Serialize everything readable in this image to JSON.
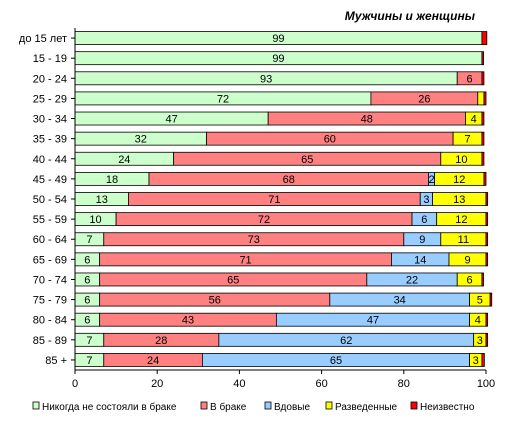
{
  "chart_data": {
    "type": "bar",
    "orientation": "horizontal",
    "stacked": "percent",
    "title": "Мужчины и женщины",
    "categories": [
      "до 15 лет",
      "15 - 19",
      "20 - 24",
      "25 - 29",
      "30 - 34",
      "35 - 39",
      "40 - 44",
      "45 - 49",
      "50 - 54",
      "55 - 59",
      "60 - 64",
      "65 - 69",
      "70 - 74",
      "75 - 79",
      "80 - 84",
      "85 - 89",
      "85 +"
    ],
    "series": [
      {
        "name": "Никогда  не состояли в браке",
        "color": "#ccffcc",
        "values": [
          99,
          99,
          93,
          72,
          47,
          32,
          24,
          18,
          13,
          10,
          7,
          6,
          6,
          6,
          6,
          7,
          7
        ],
        "labels": [
          "99",
          "99",
          "93",
          "72",
          "47",
          "32",
          "24",
          "18",
          "13",
          "10",
          "7",
          "6",
          "6",
          "6",
          "6",
          "7",
          "7"
        ]
      },
      {
        "name": "В браке",
        "color": "#ff8080",
        "values": [
          0,
          0,
          6,
          26,
          48,
          60,
          65,
          68,
          71,
          72,
          73,
          71,
          65,
          56,
          43,
          28,
          24
        ],
        "labels": [
          "",
          "",
          "6",
          "26",
          "48",
          "60",
          "65",
          "68",
          "71",
          "72",
          "73",
          "71",
          "65",
          "56",
          "43",
          "28",
          "24"
        ]
      },
      {
        "name": "Вдовые",
        "color": "#99ccff",
        "values": [
          0,
          0,
          0,
          0,
          0,
          0,
          0,
          1.5,
          3,
          6,
          9,
          14,
          22,
          34,
          47,
          62,
          65
        ],
        "labels": [
          "",
          "",
          "",
          "",
          "",
          "",
          "",
          "2",
          "3",
          "6",
          "9",
          "14",
          "22",
          "34",
          "47",
          "62",
          "65"
        ]
      },
      {
        "name": "Разведенные",
        "color": "#ffff00",
        "values": [
          0,
          0,
          0,
          1.5,
          4,
          7,
          10,
          12,
          13,
          12,
          11,
          9,
          6,
          5,
          4,
          3,
          3
        ],
        "labels": [
          "",
          "",
          "",
          "",
          "4",
          "7",
          "10",
          "12",
          "13",
          "12",
          "11",
          "9",
          "6",
          "5",
          "4",
          "3",
          "3"
        ]
      },
      {
        "name": "Неизвестно",
        "color": "#ff0000",
        "values": [
          1.2,
          0.4,
          0.5,
          0.5,
          0.5,
          0.5,
          0.5,
          0.5,
          0.4,
          0.4,
          0.4,
          0.4,
          0.4,
          0.4,
          0.4,
          0.4,
          0.6
        ],
        "labels": [
          "",
          "",
          "",
          "",
          "",
          "",
          "",
          "",
          "",
          "",
          "",
          "",
          "",
          "",
          "",
          "",
          ""
        ]
      }
    ],
    "xlim": [
      0,
      100
    ],
    "xticks": [
      0,
      20,
      40,
      60,
      80,
      100
    ],
    "xlabel": "",
    "ylabel": "",
    "grid": false,
    "legend": "bottom"
  }
}
